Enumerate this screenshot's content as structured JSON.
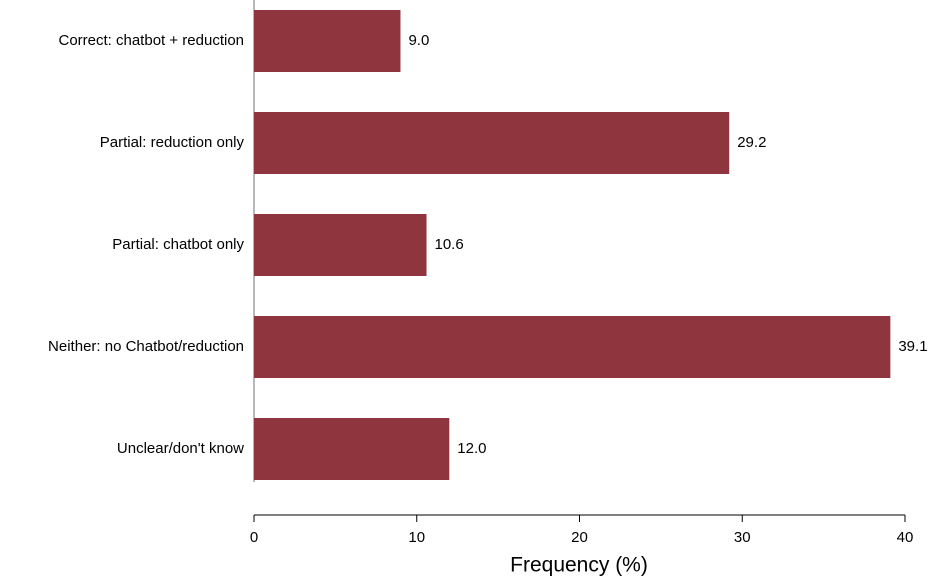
{
  "chart_data": {
    "type": "barh",
    "categories": [
      "Correct: chatbot + reduction",
      "Partial: reduction only",
      "Partial: chatbot only",
      "Neither: no Chatbot/reduction",
      "Unclear/don't know"
    ],
    "values": [
      9.0,
      29.2,
      10.6,
      39.1,
      12.0
    ],
    "value_labels": [
      "9.0",
      "29.2",
      "10.6",
      "39.1",
      "12.0"
    ],
    "color": "#8e353d",
    "xlabel": "Frequency (%)",
    "xlim": [
      0,
      40
    ],
    "xticks": [
      0,
      10,
      20,
      30,
      40
    ]
  }
}
